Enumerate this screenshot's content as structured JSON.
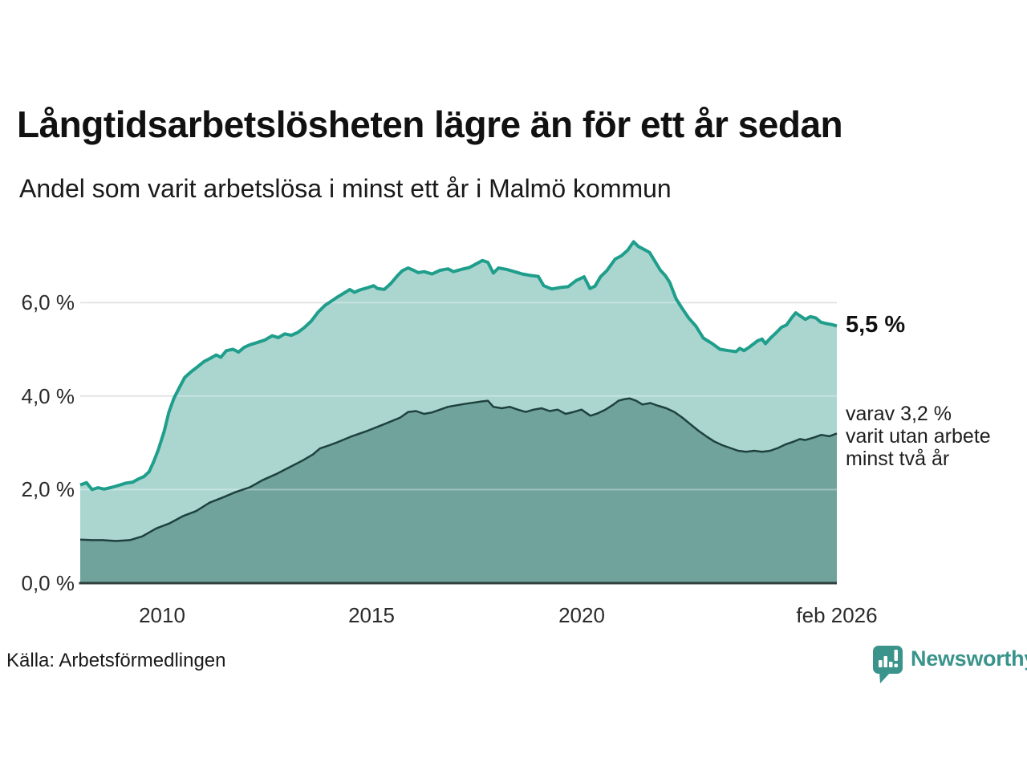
{
  "header": {
    "title": "Långtidsarbetslösheten lägre än för ett år sedan",
    "subtitle": "Andel som varit arbetslösa i minst ett år i Malmö kommun"
  },
  "chart_data": {
    "type": "area",
    "title": "Långtidsarbetslösheten lägre än för ett år sedan",
    "subtitle": "Andel som varit arbetslösa i minst ett år i Malmö kommun",
    "unit": "%",
    "x_axis": {
      "range_years": [
        2008.06,
        2026.08
      ],
      "ticks": [
        {
          "label": "2010",
          "year": 2010
        },
        {
          "label": "2015",
          "year": 2015
        },
        {
          "label": "2020",
          "year": 2020
        },
        {
          "label": "feb 2026",
          "year": 2026.08
        }
      ]
    },
    "y_axis": {
      "ticks": [
        {
          "label": "0,0 %",
          "value": 0
        },
        {
          "label": "2,0 %",
          "value": 2
        },
        {
          "label": "4,0 %",
          "value": 4
        },
        {
          "label": "6,0 %",
          "value": 6
        }
      ],
      "display_max": 7.6,
      "gridlines": true
    },
    "colors": {
      "total_line": "#1f9e8b",
      "total_fill": "#abd6d0",
      "two_year_line": "#1f413d",
      "two_year_fill": "#70a39c",
      "gridline": "#d9d9d9",
      "axis": "#2f403d"
    },
    "series": [
      {
        "name": "Arbetslösa minst ett år (totalt)",
        "end_value": 5.5,
        "end_label": "5,5 %",
        "points": [
          [
            2008.06,
            2.1
          ],
          [
            2008.21,
            2.15
          ],
          [
            2008.34,
            2.0
          ],
          [
            2008.48,
            2.04
          ],
          [
            2008.63,
            2.01
          ],
          [
            2008.82,
            2.05
          ],
          [
            2009.01,
            2.1
          ],
          [
            2009.16,
            2.14
          ],
          [
            2009.31,
            2.16
          ],
          [
            2009.43,
            2.22
          ],
          [
            2009.58,
            2.28
          ],
          [
            2009.7,
            2.38
          ],
          [
            2009.81,
            2.6
          ],
          [
            2009.92,
            2.85
          ],
          [
            2010.06,
            3.25
          ],
          [
            2010.17,
            3.65
          ],
          [
            2010.29,
            3.95
          ],
          [
            2010.42,
            4.18
          ],
          [
            2010.55,
            4.4
          ],
          [
            2010.7,
            4.52
          ],
          [
            2010.86,
            4.63
          ],
          [
            2011.01,
            4.74
          ],
          [
            2011.14,
            4.8
          ],
          [
            2011.3,
            4.88
          ],
          [
            2011.41,
            4.83
          ],
          [
            2011.54,
            4.97
          ],
          [
            2011.7,
            5.0
          ],
          [
            2011.83,
            4.94
          ],
          [
            2011.96,
            5.04
          ],
          [
            2012.11,
            5.1
          ],
          [
            2012.29,
            5.15
          ],
          [
            2012.46,
            5.2
          ],
          [
            2012.63,
            5.29
          ],
          [
            2012.78,
            5.25
          ],
          [
            2012.93,
            5.33
          ],
          [
            2013.09,
            5.3
          ],
          [
            2013.24,
            5.36
          ],
          [
            2013.39,
            5.46
          ],
          [
            2013.56,
            5.6
          ],
          [
            2013.73,
            5.8
          ],
          [
            2013.89,
            5.94
          ],
          [
            2014.04,
            6.03
          ],
          [
            2014.19,
            6.12
          ],
          [
            2014.34,
            6.2
          ],
          [
            2014.48,
            6.28
          ],
          [
            2014.59,
            6.22
          ],
          [
            2014.72,
            6.27
          ],
          [
            2014.88,
            6.31
          ],
          [
            2015.05,
            6.36
          ],
          [
            2015.14,
            6.3
          ],
          [
            2015.3,
            6.28
          ],
          [
            2015.45,
            6.4
          ],
          [
            2015.62,
            6.58
          ],
          [
            2015.73,
            6.68
          ],
          [
            2015.87,
            6.74
          ],
          [
            2016.0,
            6.69
          ],
          [
            2016.11,
            6.64
          ],
          [
            2016.25,
            6.66
          ],
          [
            2016.44,
            6.61
          ],
          [
            2016.63,
            6.69
          ],
          [
            2016.82,
            6.72
          ],
          [
            2016.95,
            6.66
          ],
          [
            2017.14,
            6.71
          ],
          [
            2017.33,
            6.75
          ],
          [
            2017.52,
            6.84
          ],
          [
            2017.64,
            6.9
          ],
          [
            2017.77,
            6.86
          ],
          [
            2017.9,
            6.63
          ],
          [
            2018.02,
            6.74
          ],
          [
            2018.21,
            6.71
          ],
          [
            2018.4,
            6.66
          ],
          [
            2018.59,
            6.61
          ],
          [
            2018.78,
            6.58
          ],
          [
            2018.97,
            6.56
          ],
          [
            2019.1,
            6.36
          ],
          [
            2019.29,
            6.29
          ],
          [
            2019.49,
            6.32
          ],
          [
            2019.68,
            6.34
          ],
          [
            2019.87,
            6.47
          ],
          [
            2020.06,
            6.55
          ],
          [
            2020.2,
            6.3
          ],
          [
            2020.32,
            6.35
          ],
          [
            2020.45,
            6.55
          ],
          [
            2020.6,
            6.68
          ],
          [
            2020.8,
            6.93
          ],
          [
            2020.95,
            7.0
          ],
          [
            2021.1,
            7.12
          ],
          [
            2021.24,
            7.3
          ],
          [
            2021.35,
            7.2
          ],
          [
            2021.5,
            7.13
          ],
          [
            2021.62,
            7.07
          ],
          [
            2021.75,
            6.88
          ],
          [
            2021.87,
            6.7
          ],
          [
            2022.0,
            6.57
          ],
          [
            2022.1,
            6.43
          ],
          [
            2022.25,
            6.08
          ],
          [
            2022.4,
            5.87
          ],
          [
            2022.55,
            5.67
          ],
          [
            2022.72,
            5.5
          ],
          [
            2022.9,
            5.24
          ],
          [
            2023.1,
            5.13
          ],
          [
            2023.3,
            5.0
          ],
          [
            2023.5,
            4.97
          ],
          [
            2023.68,
            4.95
          ],
          [
            2023.77,
            5.02
          ],
          [
            2023.87,
            4.97
          ],
          [
            2024.0,
            5.05
          ],
          [
            2024.19,
            5.18
          ],
          [
            2024.3,
            5.22
          ],
          [
            2024.38,
            5.12
          ],
          [
            2024.5,
            5.24
          ],
          [
            2024.63,
            5.35
          ],
          [
            2024.76,
            5.47
          ],
          [
            2024.88,
            5.52
          ],
          [
            2025.0,
            5.67
          ],
          [
            2025.1,
            5.78
          ],
          [
            2025.2,
            5.72
          ],
          [
            2025.33,
            5.64
          ],
          [
            2025.45,
            5.7
          ],
          [
            2025.58,
            5.67
          ],
          [
            2025.7,
            5.58
          ],
          [
            2025.83,
            5.55
          ],
          [
            2025.96,
            5.53
          ],
          [
            2026.08,
            5.5
          ]
        ]
      },
      {
        "name": "Varav utan arbete minst två år",
        "end_value": 3.2,
        "end_label_lines": [
          "varav 3,2 %",
          "varit utan arbete",
          "minst två år"
        ],
        "points": [
          [
            2008.06,
            0.93
          ],
          [
            2008.34,
            0.92
          ],
          [
            2008.59,
            0.92
          ],
          [
            2008.91,
            0.9
          ],
          [
            2009.24,
            0.92
          ],
          [
            2009.54,
            1.0
          ],
          [
            2009.87,
            1.17
          ],
          [
            2010.19,
            1.28
          ],
          [
            2010.5,
            1.43
          ],
          [
            2010.82,
            1.54
          ],
          [
            2011.14,
            1.72
          ],
          [
            2011.45,
            1.83
          ],
          [
            2011.77,
            1.95
          ],
          [
            2012.1,
            2.05
          ],
          [
            2012.4,
            2.2
          ],
          [
            2012.72,
            2.33
          ],
          [
            2013.05,
            2.48
          ],
          [
            2013.35,
            2.62
          ],
          [
            2013.6,
            2.75
          ],
          [
            2013.77,
            2.88
          ],
          [
            2014.0,
            2.95
          ],
          [
            2014.15,
            3.0
          ],
          [
            2014.53,
            3.14
          ],
          [
            2014.91,
            3.26
          ],
          [
            2015.3,
            3.4
          ],
          [
            2015.68,
            3.54
          ],
          [
            2015.87,
            3.66
          ],
          [
            2016.06,
            3.68
          ],
          [
            2016.25,
            3.62
          ],
          [
            2016.44,
            3.65
          ],
          [
            2016.82,
            3.77
          ],
          [
            2017.2,
            3.83
          ],
          [
            2017.58,
            3.88
          ],
          [
            2017.77,
            3.9
          ],
          [
            2017.9,
            3.77
          ],
          [
            2018.1,
            3.74
          ],
          [
            2018.29,
            3.77
          ],
          [
            2018.48,
            3.71
          ],
          [
            2018.67,
            3.66
          ],
          [
            2018.86,
            3.71
          ],
          [
            2019.05,
            3.74
          ],
          [
            2019.24,
            3.68
          ],
          [
            2019.43,
            3.71
          ],
          [
            2019.62,
            3.62
          ],
          [
            2019.81,
            3.66
          ],
          [
            2020.0,
            3.71
          ],
          [
            2020.21,
            3.58
          ],
          [
            2020.38,
            3.63
          ],
          [
            2020.57,
            3.71
          ],
          [
            2020.76,
            3.82
          ],
          [
            2020.88,
            3.9
          ],
          [
            2021.0,
            3.93
          ],
          [
            2021.14,
            3.95
          ],
          [
            2021.3,
            3.9
          ],
          [
            2021.45,
            3.82
          ],
          [
            2021.64,
            3.85
          ],
          [
            2021.83,
            3.79
          ],
          [
            2022.02,
            3.74
          ],
          [
            2022.21,
            3.66
          ],
          [
            2022.4,
            3.54
          ],
          [
            2022.59,
            3.4
          ],
          [
            2022.78,
            3.26
          ],
          [
            2022.97,
            3.14
          ],
          [
            2023.16,
            3.03
          ],
          [
            2023.35,
            2.95
          ],
          [
            2023.54,
            2.89
          ],
          [
            2023.73,
            2.83
          ],
          [
            2023.92,
            2.81
          ],
          [
            2024.11,
            2.83
          ],
          [
            2024.3,
            2.81
          ],
          [
            2024.49,
            2.83
          ],
          [
            2024.68,
            2.89
          ],
          [
            2024.87,
            2.97
          ],
          [
            2025.06,
            3.03
          ],
          [
            2025.2,
            3.08
          ],
          [
            2025.33,
            3.06
          ],
          [
            2025.52,
            3.11
          ],
          [
            2025.71,
            3.17
          ],
          [
            2025.9,
            3.14
          ],
          [
            2026.08,
            3.2
          ]
        ]
      }
    ]
  },
  "footer": {
    "source": "Källa: Arbetsförmedlingen",
    "brand": {
      "name": "Newsworthy",
      "color": "#3a948b",
      "icon": "speech-bubble-bar-chart-icon"
    }
  }
}
